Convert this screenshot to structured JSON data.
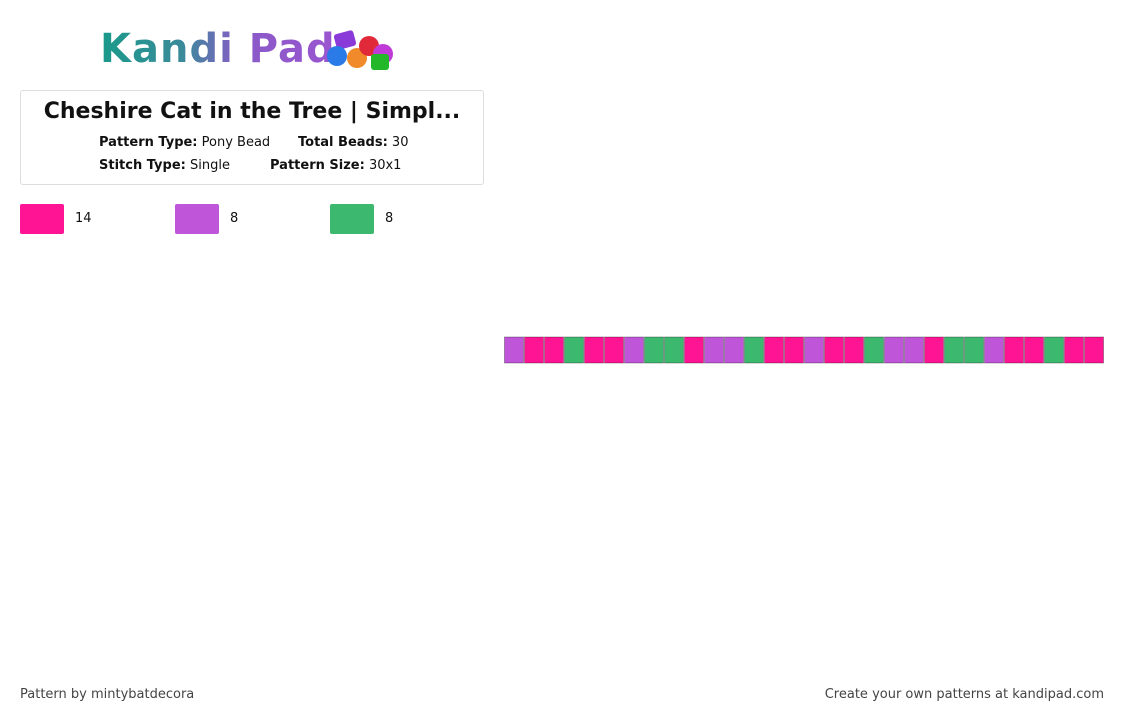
{
  "logo": {
    "text": "Kandi Pad"
  },
  "header": {
    "title": "Cheshire Cat in the Tree | Simpl...",
    "details": [
      {
        "label": "Pattern Type:",
        "value": "Pony Bead"
      },
      {
        "label": "Total Beads:",
        "value": "30"
      },
      {
        "label": "Stitch Type:",
        "value": "Single"
      },
      {
        "label": "Pattern Size:",
        "value": "30x1"
      }
    ]
  },
  "palette": [
    {
      "color": "#ff1493",
      "count": "14"
    },
    {
      "color": "#bf55d8",
      "count": "8"
    },
    {
      "color": "#3db86f",
      "count": "8"
    }
  ],
  "pattern": {
    "beads": [
      1,
      0,
      0,
      2,
      0,
      0,
      1,
      2,
      2,
      0,
      1,
      1,
      2,
      0,
      0,
      1,
      0,
      0,
      2,
      1,
      1,
      0,
      2,
      2,
      1,
      0,
      0,
      2,
      0,
      0
    ]
  },
  "footer": {
    "credit": "Pattern by mintybatdecora",
    "promo": "Create your own patterns at kandipad.com"
  }
}
